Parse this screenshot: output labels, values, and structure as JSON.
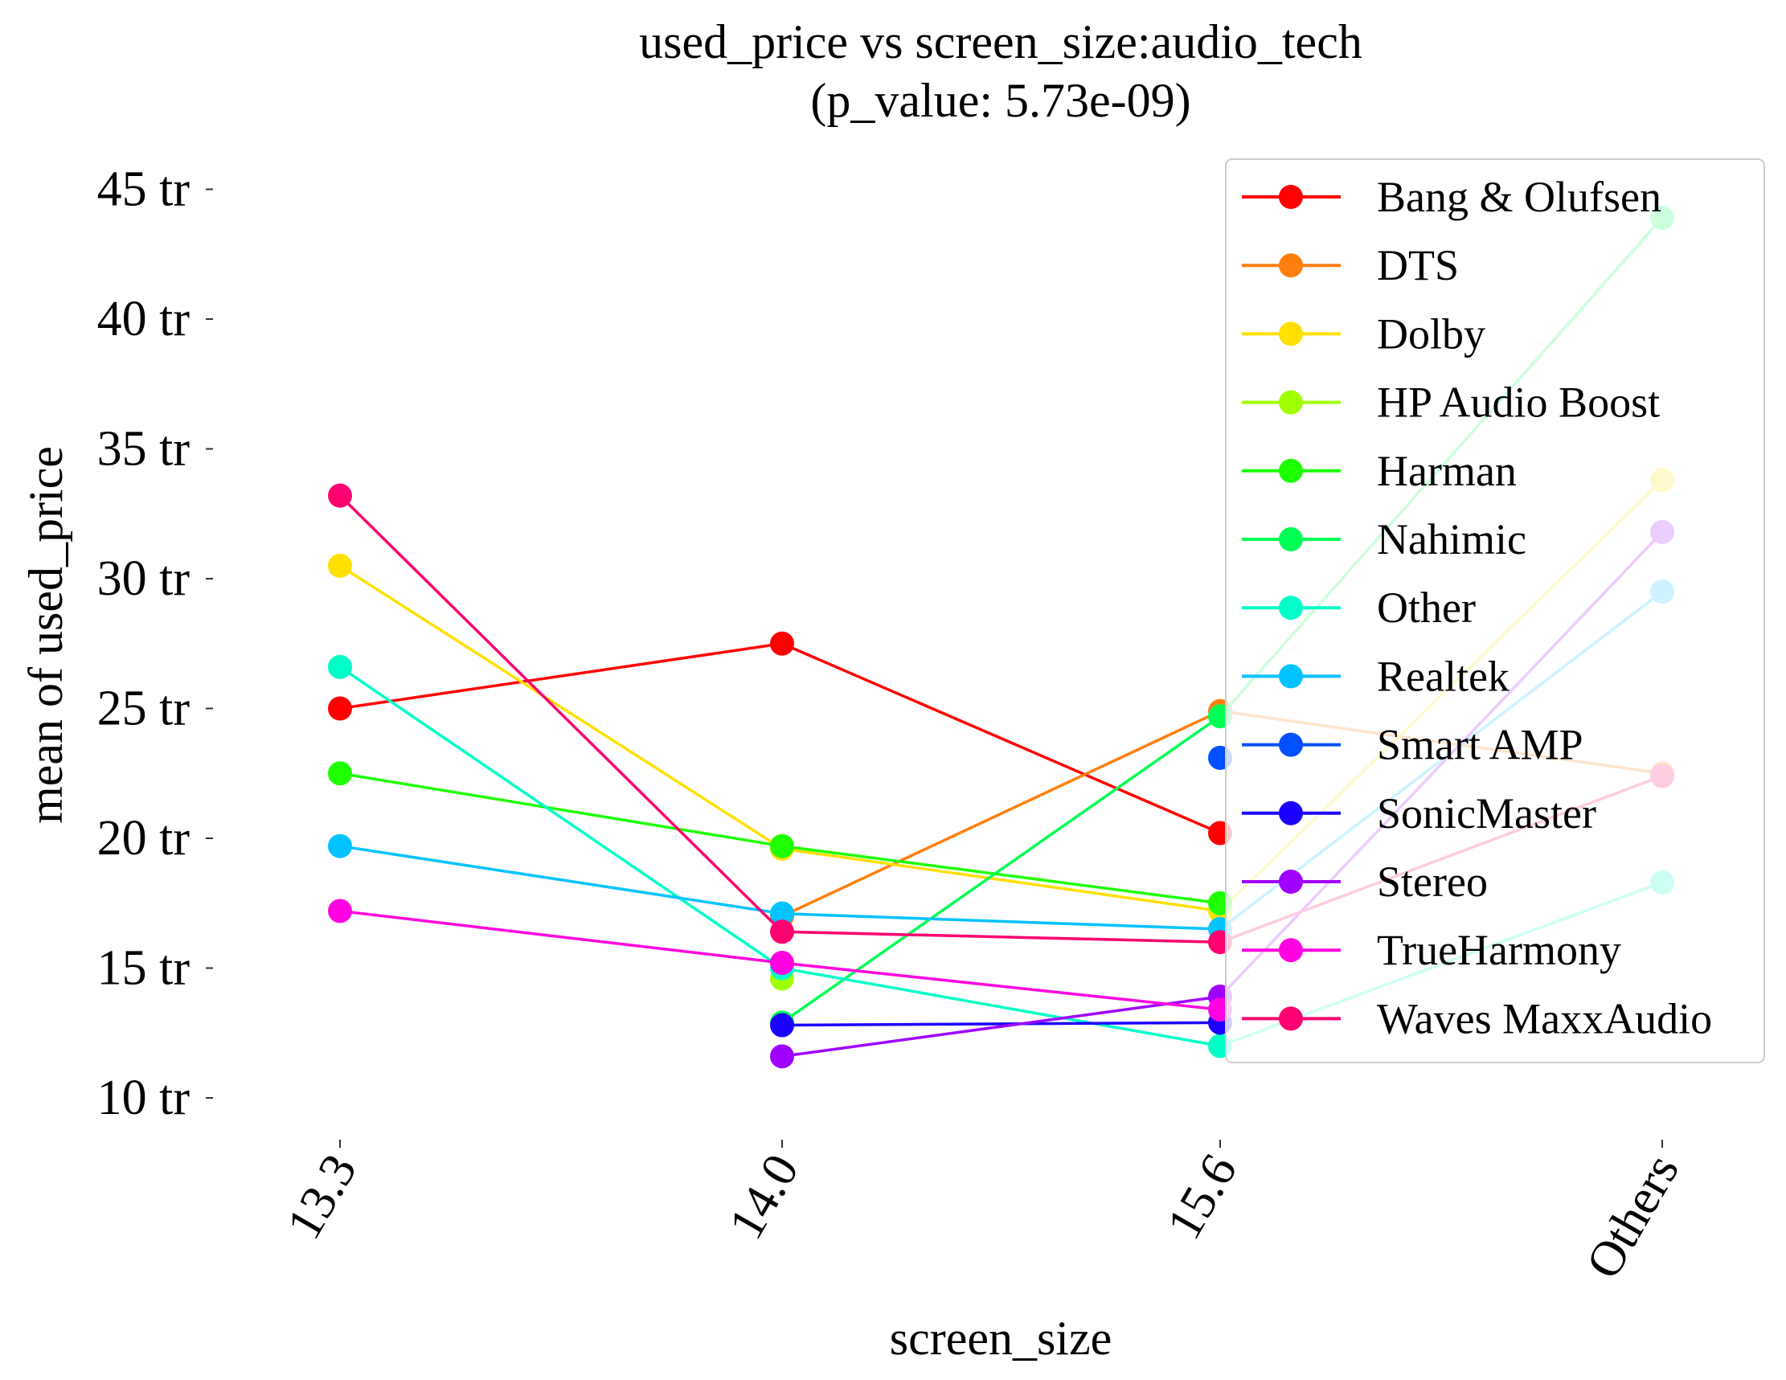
{
  "chart_data": {
    "type": "line",
    "title": "used_price vs screen_size:audio_tech",
    "subtitle": "(p_value: 5.73e-09)",
    "xlabel": "screen_size",
    "ylabel": "mean of used_price",
    "categories": [
      "13.3",
      "14.0",
      "15.6",
      "Others"
    ],
    "ylim": [
      8.5,
      47
    ],
    "yticks": [
      10,
      15,
      20,
      25,
      30,
      35,
      40,
      45
    ],
    "ytick_labels": [
      "10 tr",
      "15 tr",
      "20 tr",
      "25 tr",
      "30 tr",
      "35 tr",
      "40 tr",
      "45 tr"
    ],
    "grid": false,
    "legend_position": "upper right",
    "series": [
      {
        "name": "Bang & Olufsen",
        "color": "#ff0000",
        "values": [
          25.0,
          27.5,
          20.2,
          null
        ]
      },
      {
        "name": "DTS",
        "color": "#ff7f0e",
        "values": [
          null,
          17.0,
          24.9,
          22.5
        ]
      },
      {
        "name": "Dolby",
        "color": "#ffe000",
        "values": [
          30.5,
          19.6,
          17.2,
          33.8
        ]
      },
      {
        "name": "HP Audio Boost",
        "color": "#a0ff00",
        "values": [
          null,
          14.6,
          null,
          null
        ]
      },
      {
        "name": "Harman",
        "color": "#1eff00",
        "values": [
          22.5,
          19.7,
          17.5,
          null
        ]
      },
      {
        "name": "Nahimic",
        "color": "#00ff55",
        "values": [
          null,
          12.9,
          24.7,
          43.9
        ]
      },
      {
        "name": "Other",
        "color": "#00ffc8",
        "values": [
          26.6,
          15.0,
          12.0,
          18.3
        ]
      },
      {
        "name": "Realtek",
        "color": "#00c3ff",
        "values": [
          19.7,
          17.1,
          16.5,
          29.5
        ]
      },
      {
        "name": "Smart AMP",
        "color": "#0050ff",
        "values": [
          null,
          null,
          23.1,
          null
        ]
      },
      {
        "name": "SonicMaster",
        "color": "#1a00ff",
        "values": [
          null,
          12.8,
          12.9,
          null
        ]
      },
      {
        "name": "Stereo",
        "color": "#a000ff",
        "values": [
          null,
          11.6,
          13.9,
          31.8
        ]
      },
      {
        "name": "TrueHarmony",
        "color": "#ff00e0",
        "values": [
          17.2,
          15.2,
          13.4,
          null
        ]
      },
      {
        "name": "Waves MaxxAudio",
        "color": "#ff0070",
        "values": [
          33.2,
          16.4,
          16.0,
          22.4
        ]
      }
    ]
  }
}
